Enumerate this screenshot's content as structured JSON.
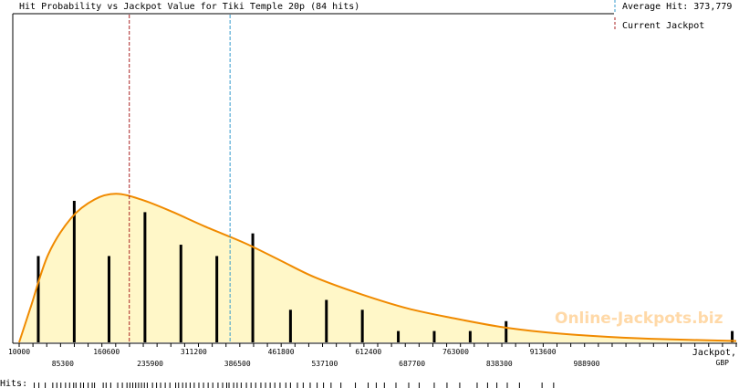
{
  "title": "Hit Probability vs Jackpot Value for Tiki Temple 20p (84 hits)",
  "legend": {
    "average_label": "Average Hit: 373,779",
    "current_label": "Current Jackpot"
  },
  "watermark": "Online-Jackpots.biz",
  "xlabel": "Jackpot,",
  "xunit": "GBP",
  "hits_label": "Hits:",
  "colors": {
    "curve": "#f08a00",
    "fill": "#fff7c8",
    "bars": "#000000",
    "average_line": "#3399cc",
    "current_line": "#aa2222",
    "axis": "#000000"
  },
  "chart_data": {
    "type": "bar",
    "title": "Hit Probability vs Jackpot Value for Tiki Temple 20p (84 hits)",
    "xlabel": "Jackpot,",
    "xunit": "GBP",
    "xlim": [
      10000,
      1247000
    ],
    "ylim": [
      0,
      1
    ],
    "grid": false,
    "tick_labels_upper": [
      "10000",
      "160600",
      "311200",
      "461800",
      "612400",
      "763000",
      "913600"
    ],
    "tick_labels_lower": [
      "85300",
      "235900",
      "386500",
      "537100",
      "687700",
      "838300",
      "988900"
    ],
    "average_hit": 373779,
    "current_jackpot": 200000,
    "bars": [
      {
        "x": 43000,
        "value": 0.61
      },
      {
        "x": 105000,
        "value": 1.0
      },
      {
        "x": 165000,
        "value": 0.61
      },
      {
        "x": 227000,
        "value": 0.92
      },
      {
        "x": 289000,
        "value": 0.69
      },
      {
        "x": 351000,
        "value": 0.61
      },
      {
        "x": 413000,
        "value": 0.77
      },
      {
        "x": 478000,
        "value": 0.23
      },
      {
        "x": 540000,
        "value": 0.3
      },
      {
        "x": 602000,
        "value": 0.23
      },
      {
        "x": 664000,
        "value": 0.08
      },
      {
        "x": 726000,
        "value": 0.08
      },
      {
        "x": 788000,
        "value": 0.08
      },
      {
        "x": 850000,
        "value": 0.15
      },
      {
        "x": 1240000,
        "value": 0.08
      }
    ],
    "curve": {
      "shape": "lognormal",
      "peak_x": 177000,
      "peak_y": 1.05,
      "points": [
        [
          10000,
          0.0
        ],
        [
          30000,
          0.25
        ],
        [
          60000,
          0.62
        ],
        [
          100000,
          0.88
        ],
        [
          140000,
          1.01
        ],
        [
          177000,
          1.05
        ],
        [
          220000,
          1.01
        ],
        [
          270000,
          0.93
        ],
        [
          330000,
          0.82
        ],
        [
          400000,
          0.7
        ],
        [
          460000,
          0.58
        ],
        [
          520000,
          0.46
        ],
        [
          600000,
          0.34
        ],
        [
          680000,
          0.24
        ],
        [
          760000,
          0.17
        ],
        [
          840000,
          0.11
        ],
        [
          920000,
          0.07
        ],
        [
          1000000,
          0.045
        ],
        [
          1100000,
          0.025
        ],
        [
          1247000,
          0.01
        ]
      ]
    },
    "hits": [
      36000,
      44000,
      55000,
      68000,
      75000,
      82000,
      90000,
      97000,
      104000,
      108000,
      116000,
      121000,
      129000,
      136000,
      140000,
      155000,
      160000,
      168000,
      180000,
      188000,
      196000,
      201000,
      206000,
      211000,
      216000,
      221000,
      226000,
      231000,
      240000,
      247000,
      254000,
      262000,
      270000,
      280000,
      285000,
      292000,
      298000,
      305000,
      312000,
      320000,
      328000,
      336000,
      344000,
      353000,
      361000,
      368000,
      372000,
      380000,
      386000,
      393000,
      402000,
      410000,
      418000,
      427000,
      435000,
      443000,
      451000,
      460000,
      470000,
      478000,
      490000,
      500000,
      512000,
      524000,
      535000,
      548000,
      565000,
      590000,
      612000,
      626000,
      640000,
      660000,
      682000,
      700000,
      726000,
      748000,
      770000,
      800000,
      818000,
      834000,
      852000,
      873000,
      912000,
      932000
    ]
  }
}
